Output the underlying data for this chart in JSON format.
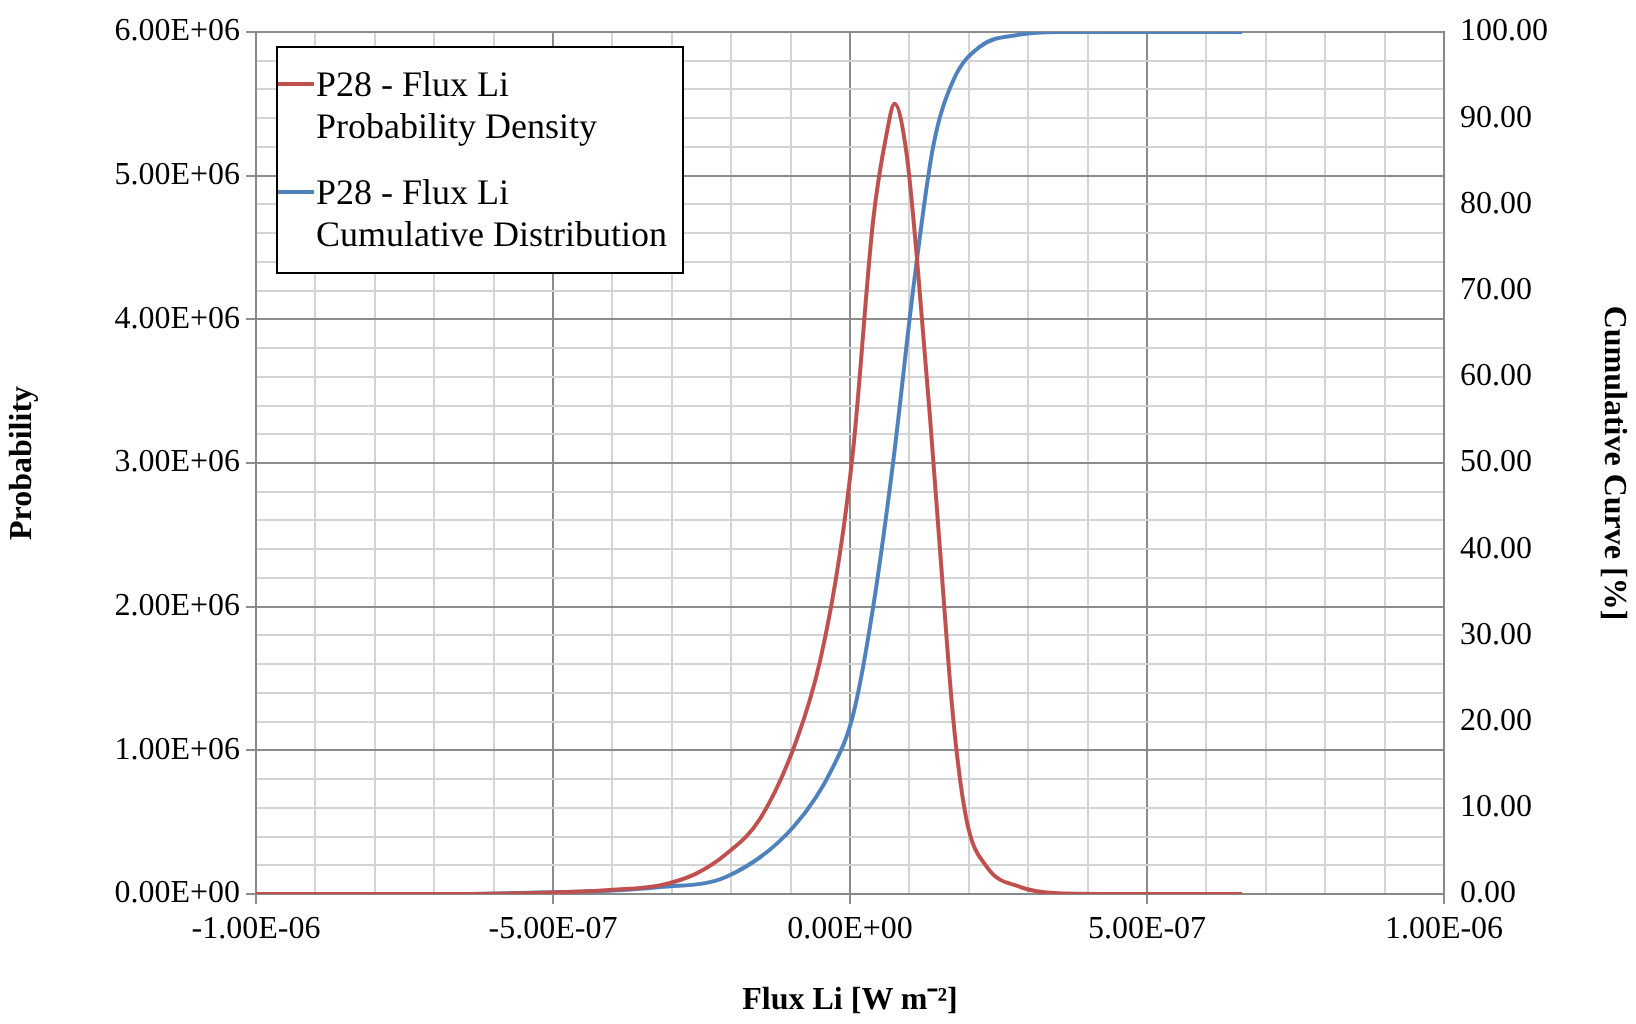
{
  "chart_data": {
    "type": "line",
    "xlabel": "Flux Li [W m⁻²]",
    "ylabel": "Probability",
    "y2label": "Cumulative Curve [%]",
    "xlim": [
      -1e-06,
      1e-06
    ],
    "xticks": [
      {
        "value": -1e-06,
        "label": "-1.00E-06"
      },
      {
        "value": -9e-07,
        "label": null
      },
      {
        "value": -8e-07,
        "label": null
      },
      {
        "value": -7e-07,
        "label": null
      },
      {
        "value": -6e-07,
        "label": null
      },
      {
        "value": -5e-07,
        "label": "-5.00E-07"
      },
      {
        "value": -4e-07,
        "label": null
      },
      {
        "value": -3e-07,
        "label": null
      },
      {
        "value": -2e-07,
        "label": null
      },
      {
        "value": -1e-07,
        "label": null
      },
      {
        "value": 0,
        "label": "0.00E+00"
      },
      {
        "value": 1e-07,
        "label": null
      },
      {
        "value": 2e-07,
        "label": null
      },
      {
        "value": 3e-07,
        "label": null
      },
      {
        "value": 4e-07,
        "label": null
      },
      {
        "value": 5e-07,
        "label": "5.00E-07"
      },
      {
        "value": 6e-07,
        "label": null
      },
      {
        "value": 7e-07,
        "label": null
      },
      {
        "value": 8e-07,
        "label": null
      },
      {
        "value": 9e-07,
        "label": null
      },
      {
        "value": 1e-06,
        "label": "1.00E-06"
      }
    ],
    "ylim": [
      0,
      6000000
    ],
    "yticks": [
      {
        "value": 0,
        "label": "0.00E+00"
      },
      {
        "value": 200000,
        "label": null
      },
      {
        "value": 400000,
        "label": null
      },
      {
        "value": 600000,
        "label": null
      },
      {
        "value": 800000,
        "label": null
      },
      {
        "value": 1000000,
        "label": "1.00E+06"
      },
      {
        "value": 1200000,
        "label": null
      },
      {
        "value": 1400000,
        "label": null
      },
      {
        "value": 1600000,
        "label": null
      },
      {
        "value": 1800000,
        "label": null
      },
      {
        "value": 2000000,
        "label": "2.00E+06"
      },
      {
        "value": 2200000,
        "label": null
      },
      {
        "value": 2400000,
        "label": null
      },
      {
        "value": 2600000,
        "label": null
      },
      {
        "value": 2800000,
        "label": null
      },
      {
        "value": 3000000,
        "label": "3.00E+06"
      },
      {
        "value": 3200000,
        "label": null
      },
      {
        "value": 3400000,
        "label": null
      },
      {
        "value": 3600000,
        "label": null
      },
      {
        "value": 3800000,
        "label": null
      },
      {
        "value": 4000000,
        "label": "4.00E+06"
      },
      {
        "value": 4200000,
        "label": null
      },
      {
        "value": 4400000,
        "label": null
      },
      {
        "value": 4600000,
        "label": null
      },
      {
        "value": 4800000,
        "label": null
      },
      {
        "value": 5000000,
        "label": "5.00E+06"
      },
      {
        "value": 5200000,
        "label": null
      },
      {
        "value": 5400000,
        "label": null
      },
      {
        "value": 5600000,
        "label": null
      },
      {
        "value": 5800000,
        "label": null
      },
      {
        "value": 6000000,
        "label": "6.00E+06"
      }
    ],
    "y2lim": [
      0,
      100
    ],
    "y2ticks": [
      {
        "value": 0,
        "label": "0.00"
      },
      {
        "value": 10,
        "label": "10.00"
      },
      {
        "value": 20,
        "label": "20.00"
      },
      {
        "value": 30,
        "label": "30.00"
      },
      {
        "value": 40,
        "label": "40.00"
      },
      {
        "value": 50,
        "label": "50.00"
      },
      {
        "value": 60,
        "label": "60.00"
      },
      {
        "value": 70,
        "label": "70.00"
      },
      {
        "value": 80,
        "label": "80.00"
      },
      {
        "value": 90,
        "label": "90.00"
      },
      {
        "value": 100,
        "label": "100.00"
      }
    ],
    "grid": true,
    "legend": "top left",
    "marker": "none",
    "line_style": "solid",
    "series": [
      {
        "name": "P28 - Flux Li Probability Density",
        "color": "#c0504d",
        "x": [
          -1e-06,
          -7e-07,
          -5e-07,
          -4e-07,
          -3.2e-07,
          -2.6e-07,
          -2.08e-07,
          -1.52e-07,
          -9e-08,
          -5e-08,
          -1.7e-08,
          6e-09,
          3.9e-08,
          6.2e-08,
          7.5e-08,
          9.5e-08,
          1.12e-07,
          1.35e-07,
          1.52e-07,
          1.74e-07,
          1.96e-07,
          2.3e-07,
          2.86e-07,
          3.5e-07,
          4.5e-07,
          6.6e-07
        ],
        "values": [
          0,
          0,
          10000,
          30000,
          60000,
          140000,
          280000,
          520000,
          1070000,
          1630000,
          2370000,
          3120000,
          4690000,
          5300000,
          5500000,
          5160000,
          4460000,
          3300000,
          2370000,
          1210000,
          520000,
          190000,
          50000,
          5000,
          0,
          0
        ]
      },
      {
        "name": "P28 - Flux Li Cumulative Distribution",
        "color": "#4f81bd",
        "axis": "y2",
        "x": [
          -1e-06,
          -7e-07,
          -5e-07,
          -4e-07,
          -3.2e-07,
          -2.08e-07,
          -9.5e-08,
          -2.8e-08,
          6e-09,
          3.9e-08,
          7.3e-08,
          1.07e-07,
          1.4e-07,
          1.74e-07,
          2.19e-07,
          2.86e-07,
          3.5e-07,
          6.6e-07
        ],
        "values": [
          0,
          0,
          0.2,
          0.4,
          0.8,
          2,
          7.8,
          14.8,
          21,
          33.3,
          50.3,
          70.5,
          86.7,
          94.4,
          98.3,
          99.7,
          100,
          100
        ]
      }
    ]
  }
}
